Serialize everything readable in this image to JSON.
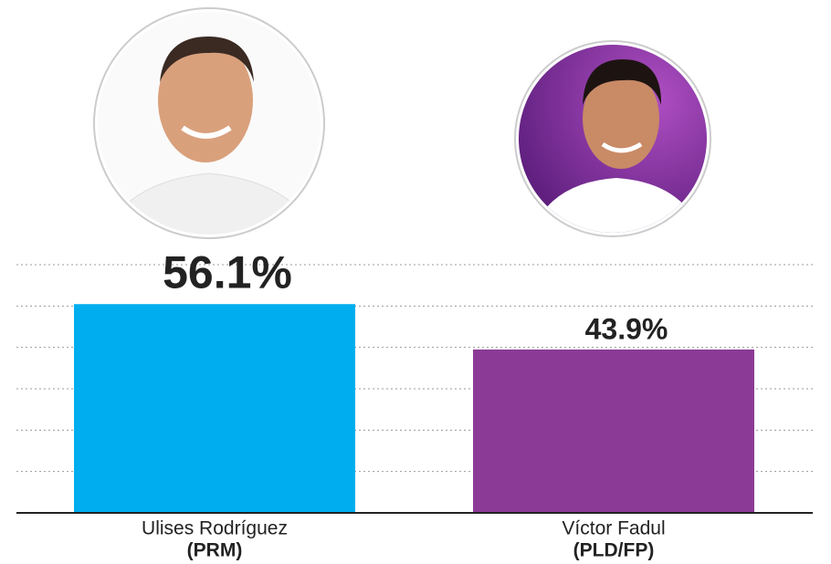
{
  "chart_data": {
    "type": "bar",
    "categories": [
      "Ulises Rodríguez",
      "Víctor Fadul"
    ],
    "parties": [
      "(PRM)",
      "(PLD/FP)"
    ],
    "values": [
      56.1,
      43.9
    ],
    "value_labels": [
      "56.1%",
      "43.9%"
    ],
    "colors": [
      "#00aeef",
      "#8b3a96"
    ],
    "ylim": [
      0,
      66.7
    ],
    "grid": true
  }
}
